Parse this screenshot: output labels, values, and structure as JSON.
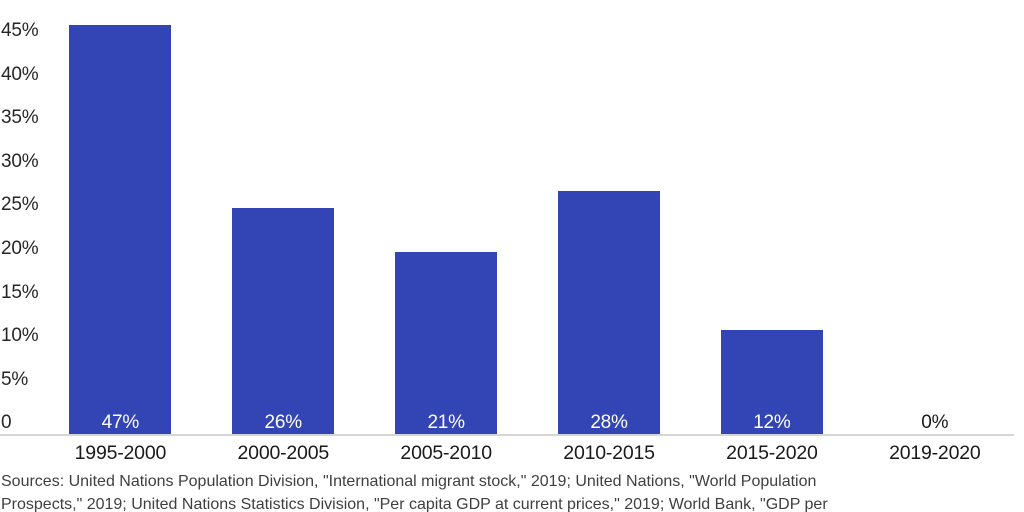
{
  "chart_data": {
    "type": "bar",
    "title": "",
    "xlabel": "",
    "ylabel": "",
    "categories": [
      "1995-2000",
      "2000-2005",
      "2005-2010",
      "2010-2015",
      "2015-2020",
      "2019-2020"
    ],
    "values": [
      47,
      26,
      21,
      28,
      12,
      0
    ],
    "bar_labels": [
      "47%",
      "26%",
      "21%",
      "28%",
      "12%",
      "0%"
    ],
    "ytick_labels": [
      "45%",
      "40%",
      "35%",
      "30%",
      "25%",
      "20%",
      "15%",
      "10%",
      "5%",
      "0"
    ],
    "ytick_values": [
      45,
      40,
      35,
      30,
      25,
      20,
      15,
      10,
      5,
      0
    ],
    "ylim": [
      0,
      50
    ],
    "grid": false,
    "legend": null,
    "colors": {
      "bar": "#3345b5",
      "axis_line": "#d6d6d6",
      "ytick_text": "#262626",
      "xlabel_text": "#1a1a1a",
      "bar_label_inside": "#ffffff",
      "bar_label_outside": "#1a1a1a",
      "source_text": "#3f3f3f"
    }
  },
  "footer": {
    "source_lines": [
      "Sources: United Nations Population Division, \"International migrant stock,\" 2019; United Nations, \"World Population",
      "Prospects,\" 2019; United Nations Statistics Division, \"Per capita GDP at current prices,\" 2019; World Bank, \"GDP per"
    ]
  }
}
